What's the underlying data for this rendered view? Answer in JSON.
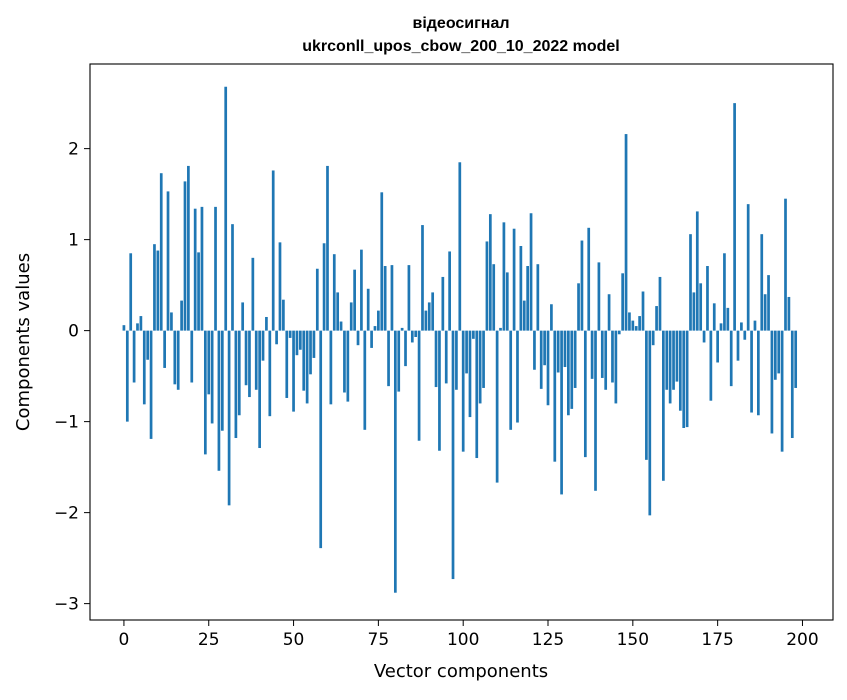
{
  "chart_data": {
    "type": "bar",
    "title_line1": "відеосигнал",
    "title_line2": "ukrconll_upos_cbow_200_10_2022 model",
    "xlabel": "Vector components",
    "ylabel": "Components values",
    "xlim": [
      -10,
      209
    ],
    "ylim": [
      -3.18,
      2.93
    ],
    "xticks": [
      0,
      25,
      50,
      75,
      100,
      125,
      150,
      175,
      200
    ],
    "yticks": [
      -3,
      -2,
      -1,
      0,
      1,
      2
    ],
    "ytick_labels": [
      "−3",
      "−2",
      "−1",
      "0",
      "1",
      "2"
    ],
    "grid": false,
    "bar_color": "#1f77b4",
    "values": [
      0.06,
      -1.0,
      0.85,
      -0.57,
      0.08,
      0.16,
      -0.81,
      -0.32,
      -1.19,
      0.95,
      0.88,
      1.73,
      -0.41,
      1.53,
      0.2,
      -0.59,
      -0.65,
      0.33,
      1.64,
      1.81,
      -0.57,
      1.34,
      0.86,
      1.36,
      -1.36,
      -0.7,
      -1.02,
      1.36,
      -1.54,
      -1.1,
      2.68,
      -1.92,
      1.17,
      -1.18,
      -0.93,
      0.31,
      -0.6,
      -0.73,
      0.8,
      -0.65,
      -1.29,
      -0.33,
      0.15,
      -0.94,
      1.76,
      -0.15,
      0.97,
      0.34,
      -0.74,
      -0.08,
      -0.89,
      -0.27,
      -0.21,
      -0.66,
      -0.8,
      -0.48,
      -0.3,
      0.68,
      -2.39,
      0.96,
      1.81,
      -0.81,
      0.84,
      0.42,
      0.1,
      -0.68,
      -0.78,
      0.31,
      0.67,
      -0.16,
      0.89,
      -1.09,
      0.46,
      -0.19,
      0.05,
      0.22,
      1.52,
      0.71,
      -0.61,
      0.72,
      -2.88,
      -0.67,
      0.03,
      -0.39,
      0.72,
      -0.13,
      -0.07,
      -1.21,
      1.16,
      0.22,
      0.31,
      0.42,
      -0.62,
      -1.32,
      0.59,
      -0.58,
      0.87,
      -2.73,
      -0.65,
      1.85,
      -1.33,
      -0.47,
      -0.95,
      -0.09,
      -1.4,
      -0.8,
      -0.63,
      0.98,
      1.28,
      0.73,
      -1.67,
      0.03,
      1.19,
      0.64,
      -1.09,
      1.12,
      -1.01,
      0.93,
      0.33,
      0.71,
      1.29,
      -0.43,
      0.73,
      -0.64,
      -0.38,
      -0.82,
      0.29,
      -1.44,
      -0.46,
      -1.8,
      -0.4,
      -0.93,
      -0.86,
      -0.63,
      0.52,
      0.99,
      -1.39,
      1.13,
      -0.53,
      -1.76,
      0.75,
      -0.52,
      -0.65,
      0.4,
      -0.57,
      -0.8,
      -0.04,
      0.63,
      2.16,
      0.2,
      0.11,
      0.05,
      0.16,
      0.43,
      -1.42,
      -2.03,
      -0.16,
      0.27,
      0.59,
      -1.65,
      -0.65,
      -0.8,
      -0.65,
      -0.56,
      -0.88,
      -1.07,
      -1.06,
      1.06,
      0.42,
      1.31,
      0.52,
      -0.13,
      0.71,
      -0.77,
      0.3,
      -0.35,
      0.08,
      0.85,
      0.25,
      -0.61,
      2.5,
      -0.33,
      0.09,
      -0.1,
      1.39,
      -0.9,
      0.11,
      -0.93,
      1.06,
      0.4,
      0.61,
      -1.13,
      -0.54,
      -0.47,
      -1.33,
      1.45,
      0.37,
      -1.18,
      -0.63
    ]
  }
}
